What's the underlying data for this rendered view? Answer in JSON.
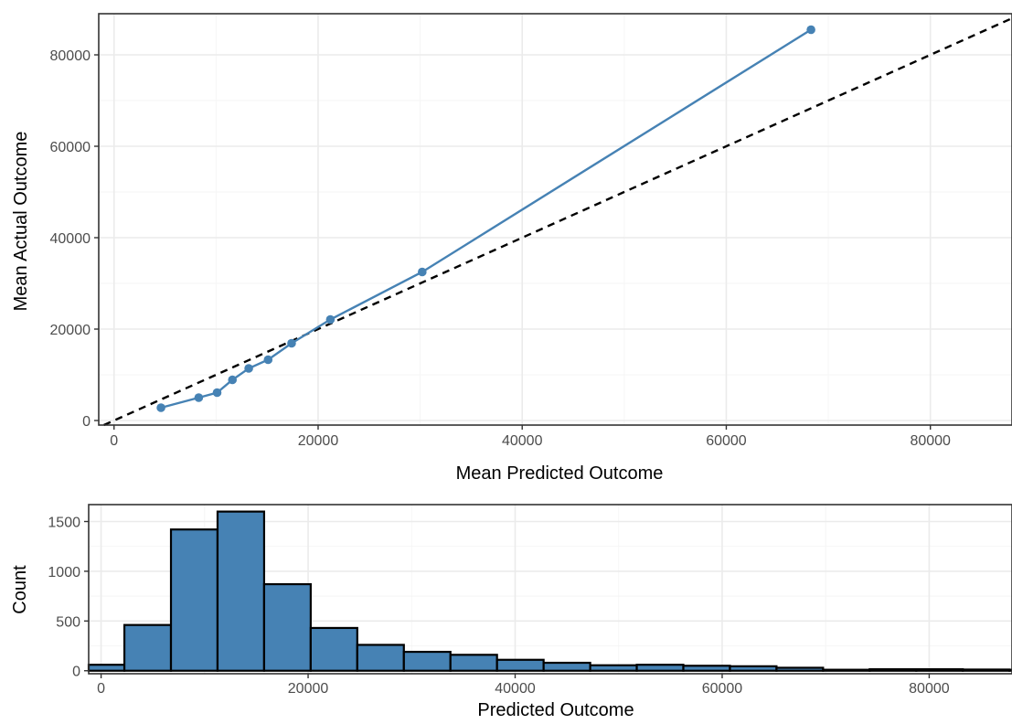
{
  "colors": {
    "series": "#4682b4",
    "ref_line": "#000000",
    "bar_fill": "#4682b4",
    "bar_stroke": "#000000"
  },
  "chart_data": [
    {
      "type": "line",
      "xlabel": "Mean Predicted Outcome",
      "ylabel": "Mean Actual Outcome",
      "xlim": [
        -1500,
        88000
      ],
      "ylim": [
        -1000,
        89000
      ],
      "xticks": [
        0,
        20000,
        40000,
        60000,
        80000
      ],
      "yticks": [
        0,
        20000,
        40000,
        60000,
        80000
      ],
      "xtick_labels": [
        "0",
        "20000",
        "40000",
        "60000",
        "80000"
      ],
      "ytick_labels": [
        "0",
        "20000",
        "40000",
        "60000",
        "80000"
      ],
      "grid": true,
      "reference_line": {
        "style": "dashed",
        "slope": 1,
        "intercept": 0
      },
      "series": [
        {
          "x": [
            4600,
            8300,
            10100,
            11600,
            13200,
            15100,
            17400,
            21200,
            30200,
            68300
          ],
          "y": [
            2800,
            5000,
            6100,
            8900,
            11400,
            13300,
            16900,
            22100,
            32500,
            85500
          ]
        }
      ]
    },
    {
      "type": "bar",
      "xlabel": "Predicted Outcome",
      "ylabel": "Count",
      "xlim": [
        -1200,
        88000
      ],
      "ylim": [
        -30,
        1670
      ],
      "xticks": [
        0,
        20000,
        40000,
        60000,
        80000
      ],
      "yticks": [
        0,
        500,
        1000,
        1500
      ],
      "xtick_labels": [
        "0",
        "20000",
        "40000",
        "60000",
        "80000"
      ],
      "ytick_labels": [
        "0",
        "500",
        "1000",
        "1500"
      ],
      "grid": true,
      "bin_width": 4500,
      "bin_start": -2250,
      "values": [
        60,
        460,
        1420,
        1600,
        870,
        430,
        260,
        190,
        160,
        110,
        80,
        55,
        60,
        50,
        45,
        30,
        10,
        15,
        15,
        12,
        10
      ]
    }
  ]
}
